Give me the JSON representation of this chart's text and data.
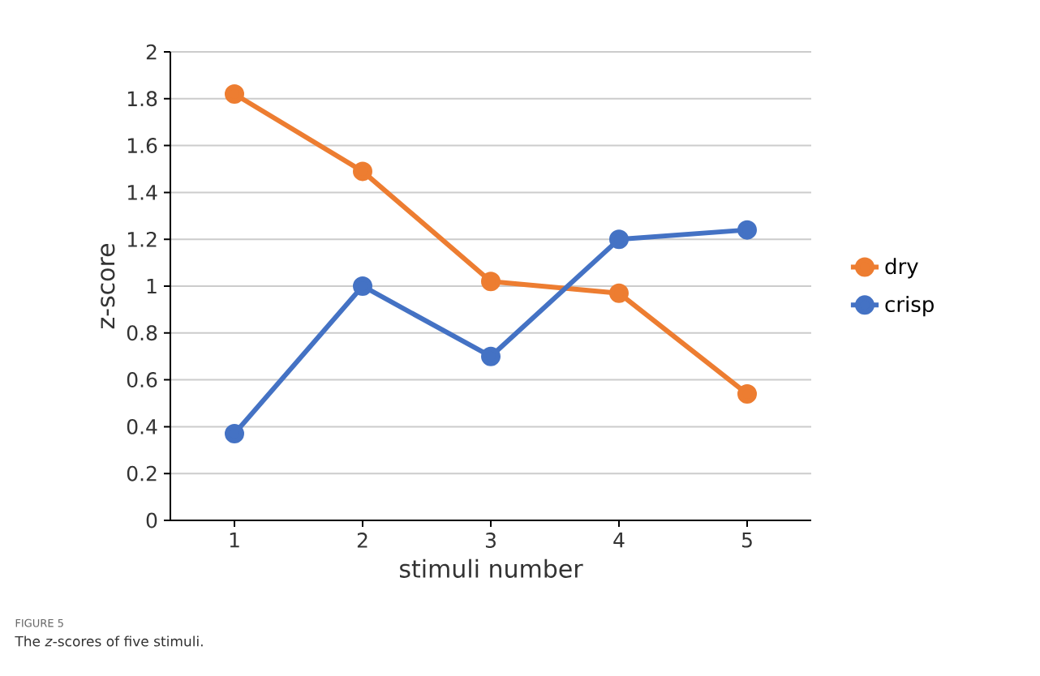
{
  "chart_data": {
    "type": "line",
    "xlabel": "stimuli number",
    "ylabel": "z-score",
    "categories": [
      "1",
      "2",
      "3",
      "4",
      "5"
    ],
    "series": [
      {
        "name": "dry",
        "color": "#ed7d31",
        "values": [
          1.82,
          1.49,
          1.02,
          0.97,
          0.54
        ]
      },
      {
        "name": "crisp",
        "color": "#4472c4",
        "values": [
          0.37,
          1.0,
          0.7,
          1.2,
          1.24
        ]
      }
    ],
    "ylim": [
      0,
      2
    ],
    "yticks": [
      0,
      0.2,
      0.4,
      0.6,
      0.8,
      1,
      1.2,
      1.4,
      1.6,
      1.8,
      2
    ],
    "grid": "y",
    "legend": "right",
    "marker": "circle",
    "annotations": [
      "FIGURE 5",
      "The *z*-scores of five stimuli."
    ]
  }
}
